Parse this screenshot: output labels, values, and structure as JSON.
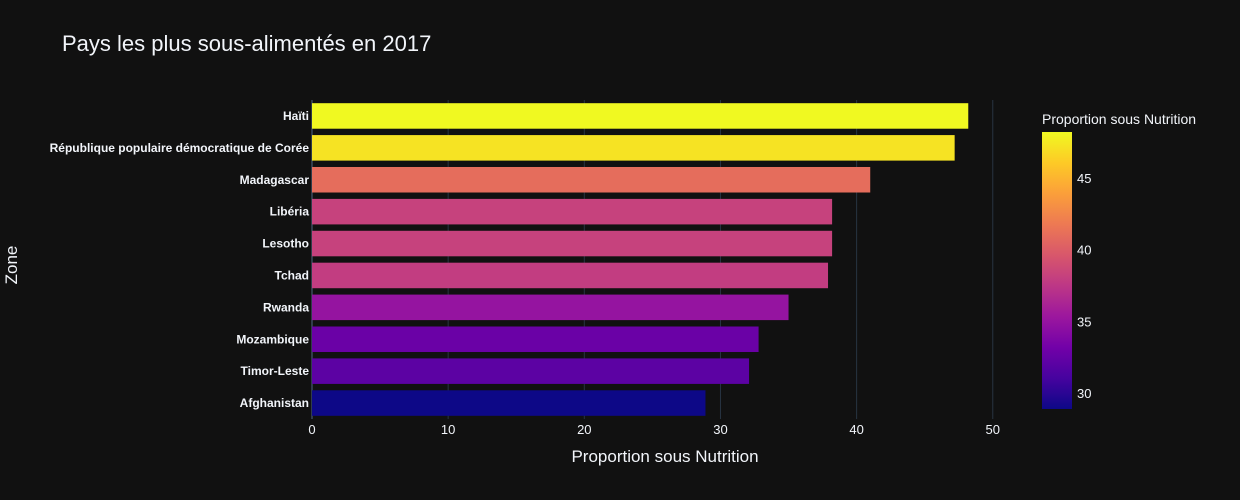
{
  "chart_data": {
    "type": "bar",
    "orientation": "horizontal",
    "title": "Pays les plus sous-alimentés en 2017",
    "xlabel": "Proportion sous Nutrition",
    "ylabel": "Zone",
    "xlim": [
      0,
      52
    ],
    "xticks": [
      0,
      10,
      20,
      30,
      40,
      50
    ],
    "grid": true,
    "categories": [
      "Haïti",
      "République populaire démocratique de Corée",
      "Madagascar",
      "Libéria",
      "Lesotho",
      "Tchad",
      "Rwanda",
      "Mozambique",
      "Timor-Leste",
      "Afghanistan"
    ],
    "values": [
      48.2,
      47.2,
      41.0,
      38.2,
      38.2,
      37.9,
      35.0,
      32.8,
      32.1,
      28.9
    ],
    "colorbar": {
      "title": "Proportion sous Nutrition",
      "range": [
        28.9,
        48.2
      ],
      "ticks": [
        30,
        35,
        40,
        45
      ],
      "colorscale": [
        "#0d0887",
        "#46039f",
        "#7201a8",
        "#9c179e",
        "#bd3786",
        "#d8576b",
        "#ed7953",
        "#fb9f3a",
        "#fdca26",
        "#f0f921"
      ]
    },
    "background_color": "#111111"
  }
}
